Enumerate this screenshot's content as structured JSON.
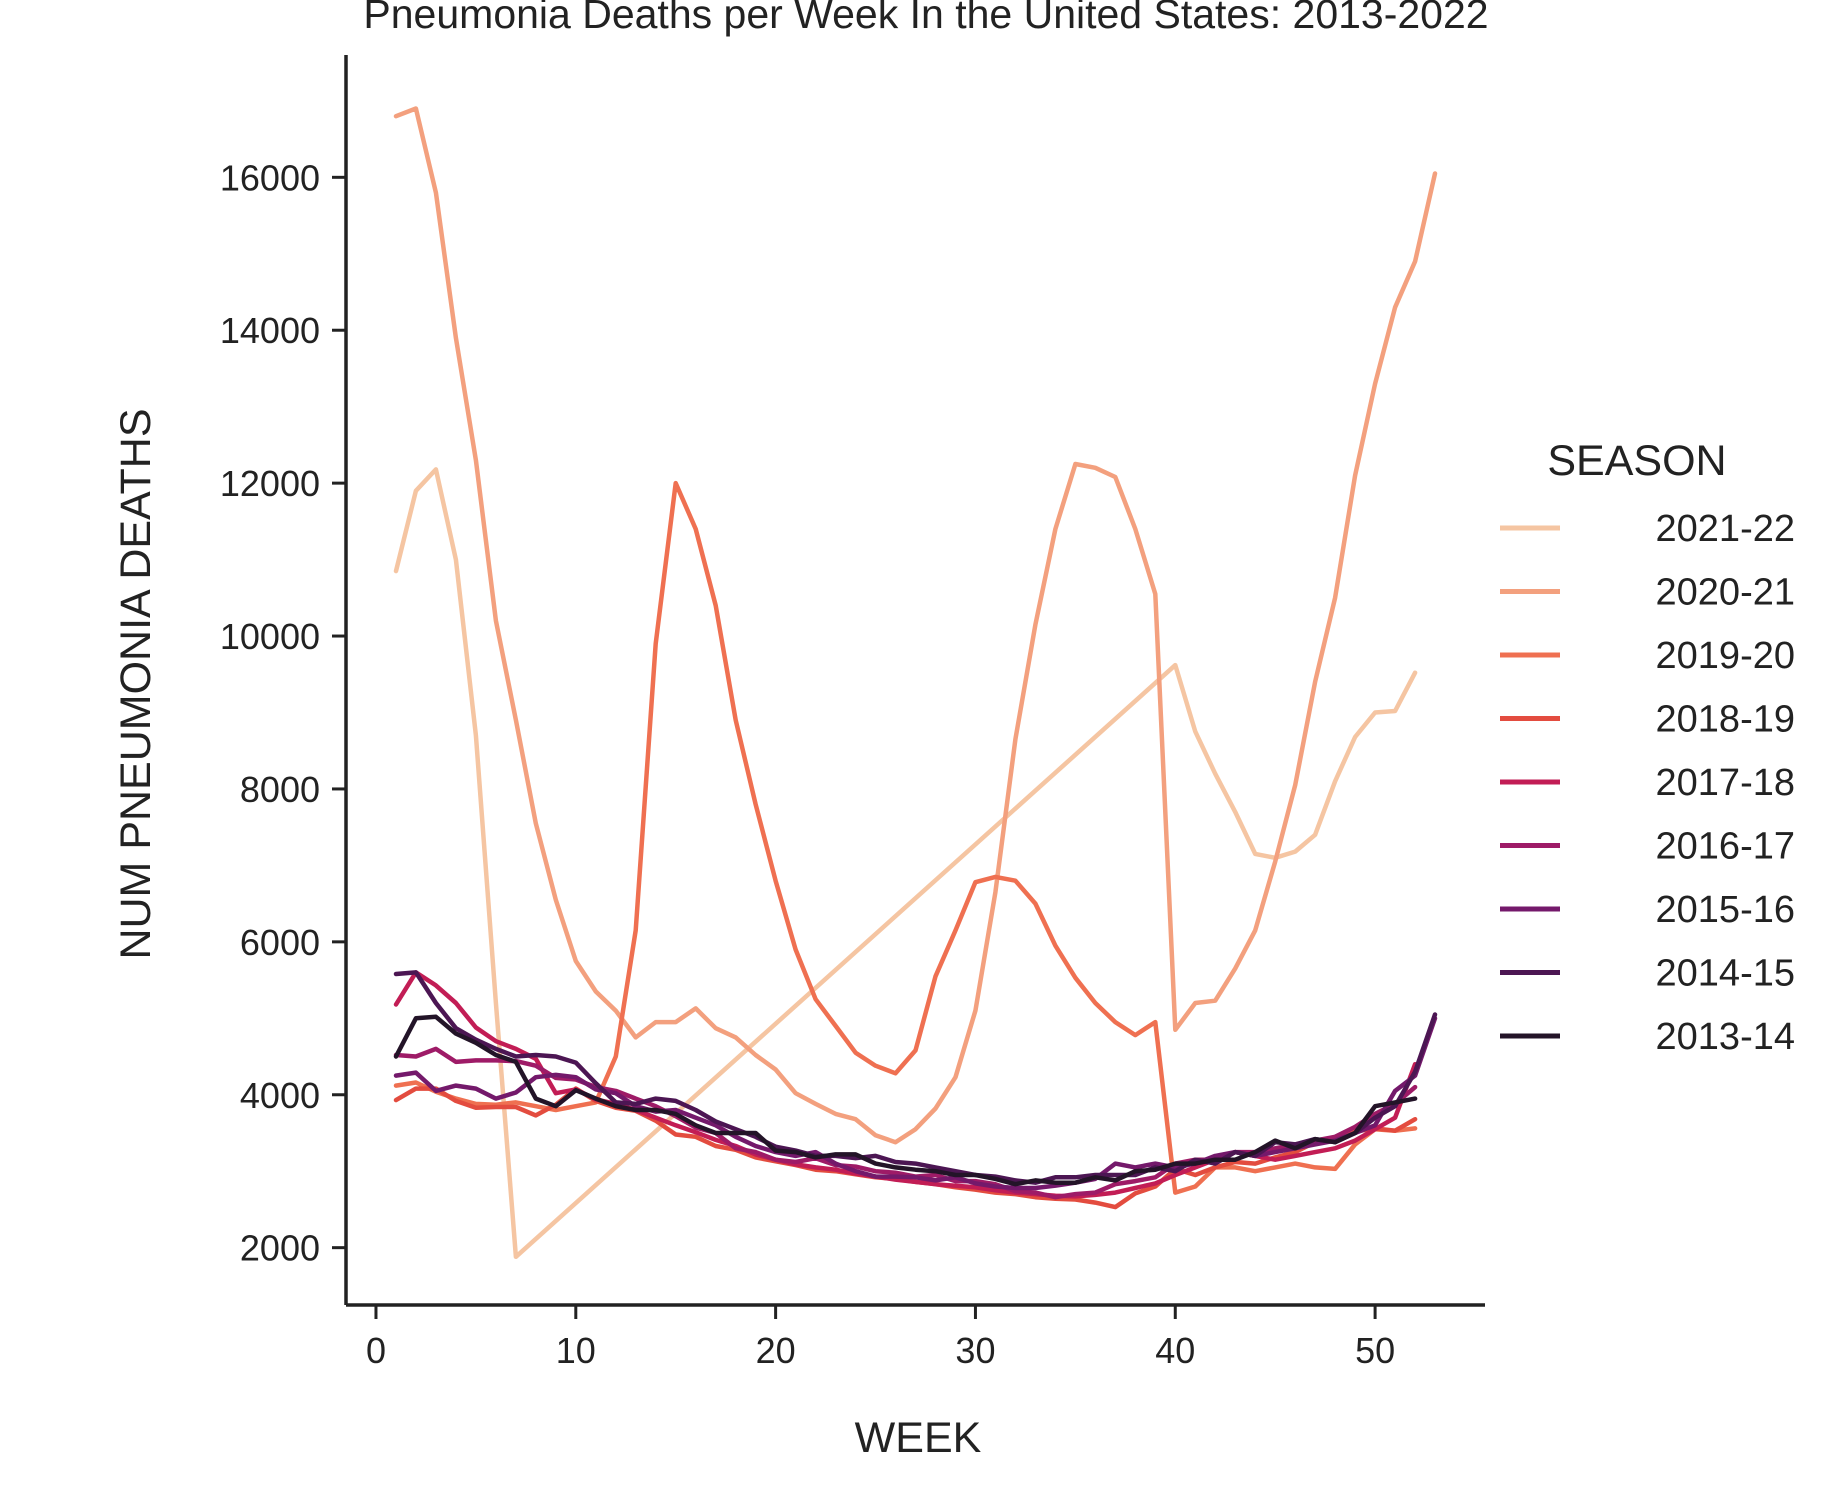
{
  "chart_data": {
    "type": "line",
    "title": "Pneumonia Deaths per Week In the United States: 2013-2022",
    "xlabel": "WEEK",
    "ylabel": "NUM PNEUMONIA DEATHS",
    "xlim": [
      -1.5,
      55.5
    ],
    "ylim": [
      1250,
      17600
    ],
    "xticks": [
      0,
      10,
      20,
      30,
      40,
      50
    ],
    "yticks": [
      2000,
      4000,
      6000,
      8000,
      10000,
      12000,
      14000,
      16000
    ],
    "grid": false,
    "legend": {
      "title": "SEASON",
      "placement": "right"
    },
    "series": [
      {
        "name": "2021-22",
        "color": "#f5c5a2",
        "x": [
          1,
          2,
          3,
          4,
          5,
          6,
          7,
          40,
          41,
          42,
          43,
          44,
          45,
          46,
          47,
          48,
          49,
          50,
          51,
          52
        ],
        "y": [
          10850,
          11900,
          12180,
          11000,
          8700,
          5200,
          1880,
          9620,
          8750,
          8200,
          7700,
          7150,
          7100,
          7180,
          7400,
          8100,
          8680,
          9000,
          9020,
          9520
        ]
      },
      {
        "name": "2020-21",
        "color": "#f3a07e",
        "x": [
          1,
          2,
          3,
          4,
          5,
          6,
          7,
          8,
          9,
          10,
          11,
          12,
          13,
          14,
          15,
          16,
          17,
          18,
          19,
          20,
          21,
          22,
          23,
          24,
          25,
          26,
          27,
          28,
          29,
          30,
          31,
          32,
          33,
          34,
          35,
          36,
          37,
          38,
          39,
          40,
          41,
          42,
          43,
          44,
          45,
          46,
          47,
          48,
          49,
          50,
          51,
          52,
          53
        ],
        "y": [
          16800,
          16900,
          15800,
          13900,
          12300,
          10200,
          8900,
          7550,
          6550,
          5750,
          5350,
          5100,
          4750,
          4950,
          4950,
          5130,
          4870,
          4750,
          4520,
          4330,
          4020,
          3880,
          3750,
          3680,
          3470,
          3380,
          3550,
          3820,
          4230,
          5100,
          6650,
          8650,
          10150,
          11400,
          12250,
          12200,
          12080,
          11400,
          10550,
          4850,
          5200,
          5230,
          5650,
          6150,
          7050,
          8050,
          9400,
          10500,
          12100,
          13300,
          14300,
          14900,
          16050
        ]
      },
      {
        "name": "2019-20",
        "color": "#ef7051",
        "x": [
          1,
          2,
          3,
          4,
          5,
          6,
          7,
          8,
          9,
          10,
          11,
          12,
          13,
          14,
          15,
          16,
          17,
          18,
          19,
          20,
          21,
          22,
          23,
          24,
          25,
          26,
          27,
          28,
          29,
          30,
          31,
          32,
          33,
          34,
          35,
          36,
          37,
          38,
          39,
          40,
          41,
          42,
          43,
          44,
          45,
          46,
          47,
          48,
          49,
          50,
          51,
          52
        ],
        "y": [
          4120,
          4160,
          4040,
          3950,
          3880,
          3870,
          3900,
          3850,
          3800,
          3850,
          3900,
          4500,
          6150,
          9900,
          12000,
          11400,
          10400,
          8900,
          7800,
          6800,
          5900,
          5250,
          4900,
          4550,
          4380,
          4280,
          4580,
          5550,
          6150,
          6780,
          6850,
          6800,
          6500,
          5950,
          5530,
          5200,
          4950,
          4780,
          4950,
          2720,
          2800,
          3050,
          3050,
          3000,
          3050,
          3100,
          3050,
          3030,
          3350,
          3550,
          3530,
          3560
        ]
      },
      {
        "name": "2018-19",
        "color": "#e34c3f",
        "x": [
          1,
          2,
          3,
          4,
          5,
          6,
          7,
          8,
          9,
          10,
          11,
          12,
          13,
          14,
          15,
          16,
          17,
          18,
          19,
          20,
          21,
          22,
          23,
          24,
          25,
          26,
          27,
          28,
          29,
          30,
          31,
          32,
          33,
          34,
          35,
          36,
          37,
          38,
          39,
          40,
          41,
          42,
          43,
          44,
          45,
          46,
          47,
          48,
          49,
          50,
          51,
          52
        ],
        "y": [
          3930,
          4080,
          4080,
          3920,
          3830,
          3840,
          3840,
          3730,
          3870,
          4080,
          3920,
          3830,
          3790,
          3660,
          3480,
          3450,
          3330,
          3280,
          3180,
          3130,
          3080,
          3020,
          3000,
          2960,
          2920,
          2900,
          2860,
          2830,
          2790,
          2760,
          2720,
          2700,
          2660,
          2640,
          2630,
          2590,
          2530,
          2710,
          2800,
          3030,
          2950,
          3050,
          3120,
          3100,
          3180,
          3250,
          3380,
          3400,
          3520,
          3560,
          3530,
          3680
        ]
      },
      {
        "name": "2017-18",
        "color": "#c21d55",
        "x": [
          1,
          2,
          3,
          4,
          5,
          6,
          7,
          8,
          9,
          10,
          11,
          12,
          13,
          14,
          15,
          16,
          17,
          18,
          19,
          20,
          21,
          22,
          23,
          24,
          25,
          26,
          27,
          28,
          29,
          30,
          31,
          32,
          33,
          34,
          35,
          36,
          37,
          38,
          39,
          40,
          41,
          42,
          43,
          44,
          45,
          46,
          47,
          48,
          49,
          50,
          51,
          52
        ],
        "y": [
          5180,
          5600,
          5430,
          5200,
          4880,
          4700,
          4600,
          4470,
          4020,
          4070,
          3940,
          3880,
          3800,
          3700,
          3600,
          3510,
          3410,
          3330,
          3220,
          3150,
          3090,
          3050,
          3020,
          2970,
          2930,
          2890,
          2860,
          2830,
          2810,
          2790,
          2750,
          2720,
          2700,
          2680,
          2670,
          2690,
          2720,
          2780,
          2840,
          2950,
          3050,
          3150,
          3250,
          3200,
          3150,
          3200,
          3250,
          3300,
          3400,
          3550,
          3700,
          4400
        ]
      },
      {
        "name": "2016-17",
        "color": "#9e1b67",
        "x": [
          1,
          2,
          3,
          4,
          5,
          6,
          7,
          8,
          9,
          10,
          11,
          12,
          13,
          14,
          15,
          16,
          17,
          18,
          19,
          20,
          21,
          22,
          23,
          24,
          25,
          26,
          27,
          28,
          29,
          30,
          31,
          32,
          33,
          34,
          35,
          36,
          37,
          38,
          39,
          40,
          41,
          42,
          43,
          44,
          45,
          46,
          47,
          48,
          49,
          50,
          51,
          52
        ],
        "y": [
          4520,
          4500,
          4600,
          4430,
          4450,
          4450,
          4440,
          4380,
          4220,
          4200,
          4100,
          4050,
          3950,
          3850,
          3720,
          3570,
          3500,
          3300,
          3250,
          3150,
          3120,
          3170,
          3080,
          3060,
          3000,
          2980,
          2930,
          2950,
          2870,
          2870,
          2830,
          2740,
          2720,
          2660,
          2700,
          2720,
          2830,
          2870,
          2920,
          3100,
          3150,
          3150,
          3250,
          3250,
          3300,
          3350,
          3400,
          3450,
          3580,
          3750,
          3880,
          4100
        ]
      },
      {
        "name": "2015-16",
        "color": "#74196b",
        "x": [
          1,
          2,
          3,
          4,
          5,
          6,
          7,
          8,
          9,
          10,
          11,
          12,
          13,
          14,
          15,
          16,
          17,
          18,
          19,
          20,
          21,
          22,
          23,
          24,
          25,
          26,
          27,
          28,
          29,
          30,
          31,
          32,
          33,
          34,
          35,
          36,
          37,
          38,
          39,
          40,
          41,
          42,
          43,
          44,
          45,
          46,
          47,
          48,
          49,
          50,
          51,
          52,
          53
        ],
        "y": [
          4250,
          4290,
          4050,
          4120,
          4080,
          3950,
          4030,
          4230,
          4260,
          4230,
          4070,
          4020,
          3850,
          3780,
          3800,
          3700,
          3600,
          3450,
          3330,
          3250,
          3200,
          3250,
          3100,
          3000,
          2930,
          2930,
          2920,
          2880,
          2920,
          2840,
          2800,
          2780,
          2780,
          2810,
          2850,
          2900,
          3100,
          3050,
          3100,
          3050,
          3100,
          3200,
          3250,
          3200,
          3250,
          3300,
          3350,
          3400,
          3500,
          3600,
          4050,
          4250,
          5000
        ]
      },
      {
        "name": "2014-15",
        "color": "#4c1653",
        "x": [
          1,
          2,
          3,
          4,
          5,
          6,
          7,
          8,
          9,
          10,
          11,
          12,
          13,
          14,
          15,
          16,
          17,
          18,
          19,
          20,
          21,
          22,
          23,
          24,
          25,
          26,
          27,
          28,
          29,
          30,
          31,
          32,
          33,
          34,
          35,
          36,
          37,
          38,
          39,
          40,
          41,
          42,
          43,
          44,
          45,
          46,
          47,
          48,
          49,
          50,
          51,
          52,
          53
        ],
        "y": [
          5580,
          5600,
          5200,
          4870,
          4720,
          4600,
          4500,
          4520,
          4500,
          4420,
          4150,
          3900,
          3880,
          3950,
          3920,
          3800,
          3650,
          3550,
          3450,
          3320,
          3270,
          3200,
          3200,
          3170,
          3200,
          3120,
          3100,
          3050,
          3000,
          2950,
          2930,
          2880,
          2850,
          2920,
          2920,
          2950,
          2950,
          2950,
          3050,
          3000,
          3150,
          3100,
          3250,
          3200,
          3380,
          3350,
          3420,
          3380,
          3500,
          3700,
          3850,
          4300,
          5050
        ]
      },
      {
        "name": "2013-14",
        "color": "#231428",
        "x": [
          1,
          2,
          3,
          4,
          5,
          6,
          7,
          8,
          9,
          10,
          11,
          12,
          13,
          14,
          15,
          16,
          17,
          18,
          19,
          20,
          21,
          22,
          23,
          24,
          25,
          26,
          27,
          28,
          29,
          30,
          31,
          32,
          33,
          34,
          35,
          36,
          37,
          38,
          39,
          40,
          41,
          42,
          43,
          44,
          45,
          46,
          47,
          48,
          49,
          50,
          51,
          52
        ],
        "y": [
          4500,
          5000,
          5020,
          4800,
          4680,
          4520,
          4430,
          3950,
          3850,
          4060,
          3950,
          3850,
          3800,
          3800,
          3750,
          3600,
          3500,
          3500,
          3500,
          3270,
          3250,
          3180,
          3220,
          3220,
          3100,
          3050,
          3020,
          3000,
          2950,
          2950,
          2900,
          2830,
          2880,
          2850,
          2850,
          2920,
          2880,
          3000,
          3020,
          3100,
          3100,
          3150,
          3150,
          3250,
          3400,
          3300,
          3420,
          3380,
          3500,
          3850,
          3900,
          3950
        ]
      }
    ]
  }
}
